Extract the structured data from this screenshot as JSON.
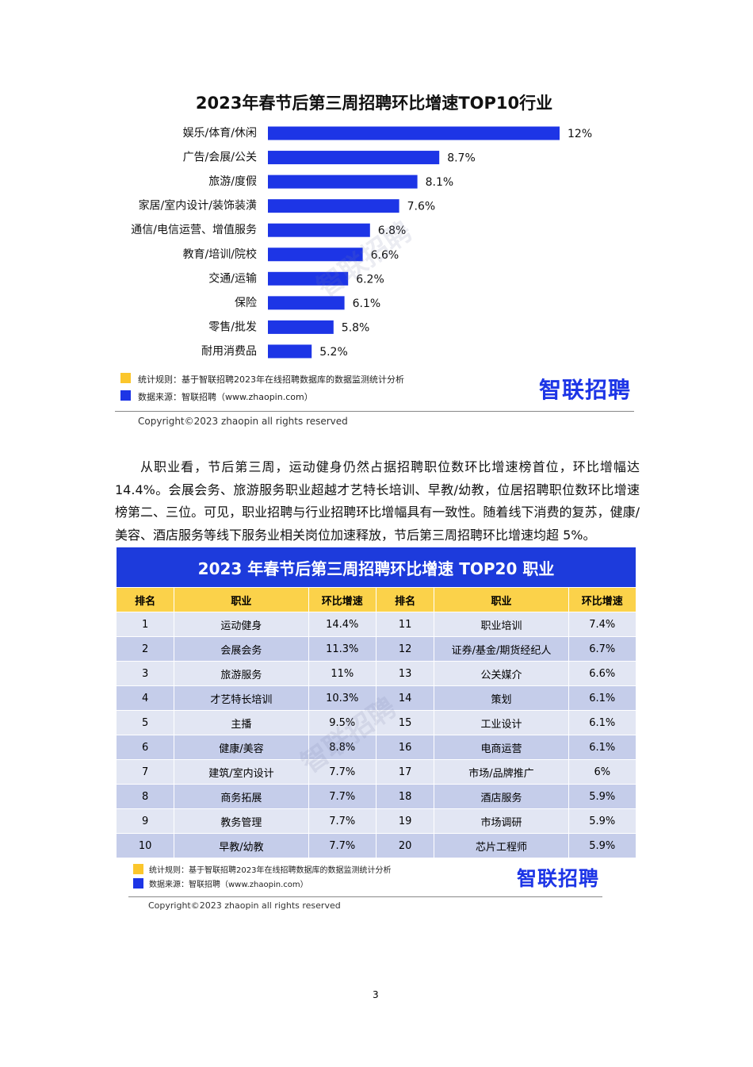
{
  "chart_data": {
    "type": "bar",
    "orientation": "horizontal",
    "title": "2023年春节后第三周招聘环比增速TOP10行业",
    "categories": [
      "娱乐/体育/休闲",
      "广告/会展/公关",
      "旅游/度假",
      "家居/室内设计/装饰装潢",
      "通信/电信运营、增值服务",
      "教育/培训/院校",
      "交通/运输",
      "保险",
      "零售/批发",
      "耐用消费品"
    ],
    "values": [
      12,
      8.7,
      8.1,
      7.6,
      6.8,
      6.6,
      6.2,
      6.1,
      5.8,
      5.2
    ],
    "value_labels": [
      "12%",
      "8.7%",
      "8.1%",
      "7.6%",
      "6.8%",
      "6.6%",
      "6.2%",
      "6.1%",
      "5.8%",
      "5.2%"
    ],
    "color": "#1d35e6",
    "xlim": [
      4,
      12
    ]
  },
  "chart_notes": {
    "rule": "统计规则：基于智联招聘2023年在线招聘数据库的数据监测统计分析",
    "source": "数据来源：智联招聘（www.zhaopin.com）",
    "logo": "智联招聘",
    "watermark": "智联招聘",
    "copyright": "Copyright©2023 zhaopin all rights reserved"
  },
  "paragraph": "从职业看，节后第三周，运动健身仍然占据招聘职位数环比增速榜首位，环比增幅达14.4%。会展会务、旅游服务职业超越才艺特长培训、早教/幼教，位居招聘职位数环比增速榜第二、三位。可见，职业招聘与行业招聘环比增幅具有一致性。随着线下消费的复苏，健康/美容、酒店服务等线下服务业相关岗位加速释放，节后第三周招聘环比增速均超 5%。",
  "table": {
    "title": "2023 年春节后第三周招聘环比增速 TOP20 职业",
    "header": [
      "排名",
      "职业",
      "环比增速",
      "排名",
      "职业",
      "环比增速"
    ],
    "rows": [
      [
        "1",
        "运动健身",
        "14.4%",
        "11",
        "职业培训",
        "7.4%"
      ],
      [
        "2",
        "会展会务",
        "11.3%",
        "12",
        "证券/基金/期货经纪人",
        "6.7%"
      ],
      [
        "3",
        "旅游服务",
        "11%",
        "13",
        "公关媒介",
        "6.6%"
      ],
      [
        "4",
        "才艺特长培训",
        "10.3%",
        "14",
        "策划",
        "6.1%"
      ],
      [
        "5",
        "主播",
        "9.5%",
        "15",
        "工业设计",
        "6.1%"
      ],
      [
        "6",
        "健康/美容",
        "8.8%",
        "16",
        "电商运营",
        "6.1%"
      ],
      [
        "7",
        "建筑/室内设计",
        "7.7%",
        "17",
        "市场/品牌推广",
        "6%"
      ],
      [
        "8",
        "商务拓展",
        "7.7%",
        "18",
        "酒店服务",
        "5.9%"
      ],
      [
        "9",
        "教务管理",
        "7.7%",
        "19",
        "市场调研",
        "5.9%"
      ],
      [
        "10",
        "早教/幼教",
        "7.7%",
        "20",
        "芯片工程师",
        "5.9%"
      ]
    ]
  },
  "table_notes": {
    "rule": "统计规则：基于智联招聘2023年在线招聘数据库的数据监测统计分析",
    "source": "数据来源：智联招聘（www.zhaopin.com）",
    "logo": "智联招聘",
    "watermark": "智联招聘",
    "copyright": "Copyright©2023 zhaopin all rights reserved"
  },
  "page_number": "3"
}
